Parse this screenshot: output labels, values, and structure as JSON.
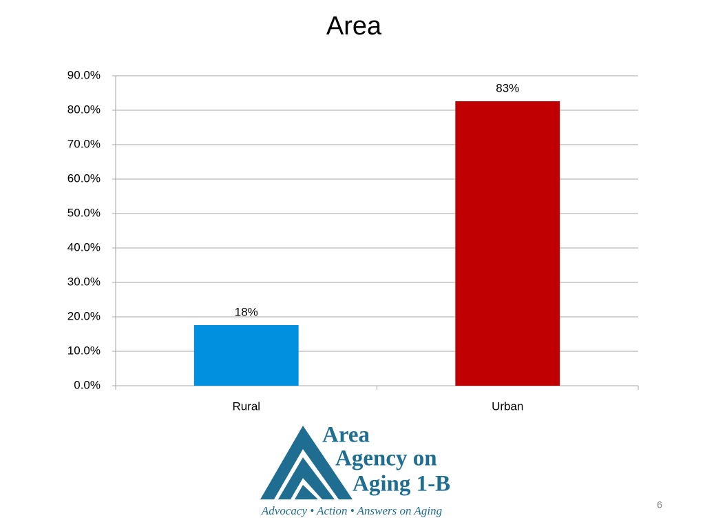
{
  "chart_data": {
    "type": "bar",
    "title": "Area",
    "categories": [
      "Rural",
      "Urban"
    ],
    "values": [
      17.6,
      82.6
    ],
    "value_labels": [
      "18%",
      "83%"
    ],
    "colors": [
      "#0090e0",
      "#c00000"
    ],
    "ylim": [
      0,
      90
    ],
    "yticks": [
      {
        "value": 0,
        "label": "0.0%"
      },
      {
        "value": 10,
        "label": "10.0%"
      },
      {
        "value": 20,
        "label": "20.0%"
      },
      {
        "value": 30,
        "label": "30.0%"
      },
      {
        "value": 40,
        "label": "40.0%"
      },
      {
        "value": 50,
        "label": "50.0%"
      },
      {
        "value": 60,
        "label": "60.0%"
      },
      {
        "value": 70,
        "label": "70.0%"
      },
      {
        "value": 80,
        "label": "80.0%"
      },
      {
        "value": 90,
        "label": "90.0%"
      }
    ],
    "grid": true
  },
  "logo": {
    "lines": [
      "Area",
      "Agency on",
      "Aging 1-B"
    ],
    "tagline": "Advocacy • Action • Answers on Aging"
  },
  "page_number": 6
}
